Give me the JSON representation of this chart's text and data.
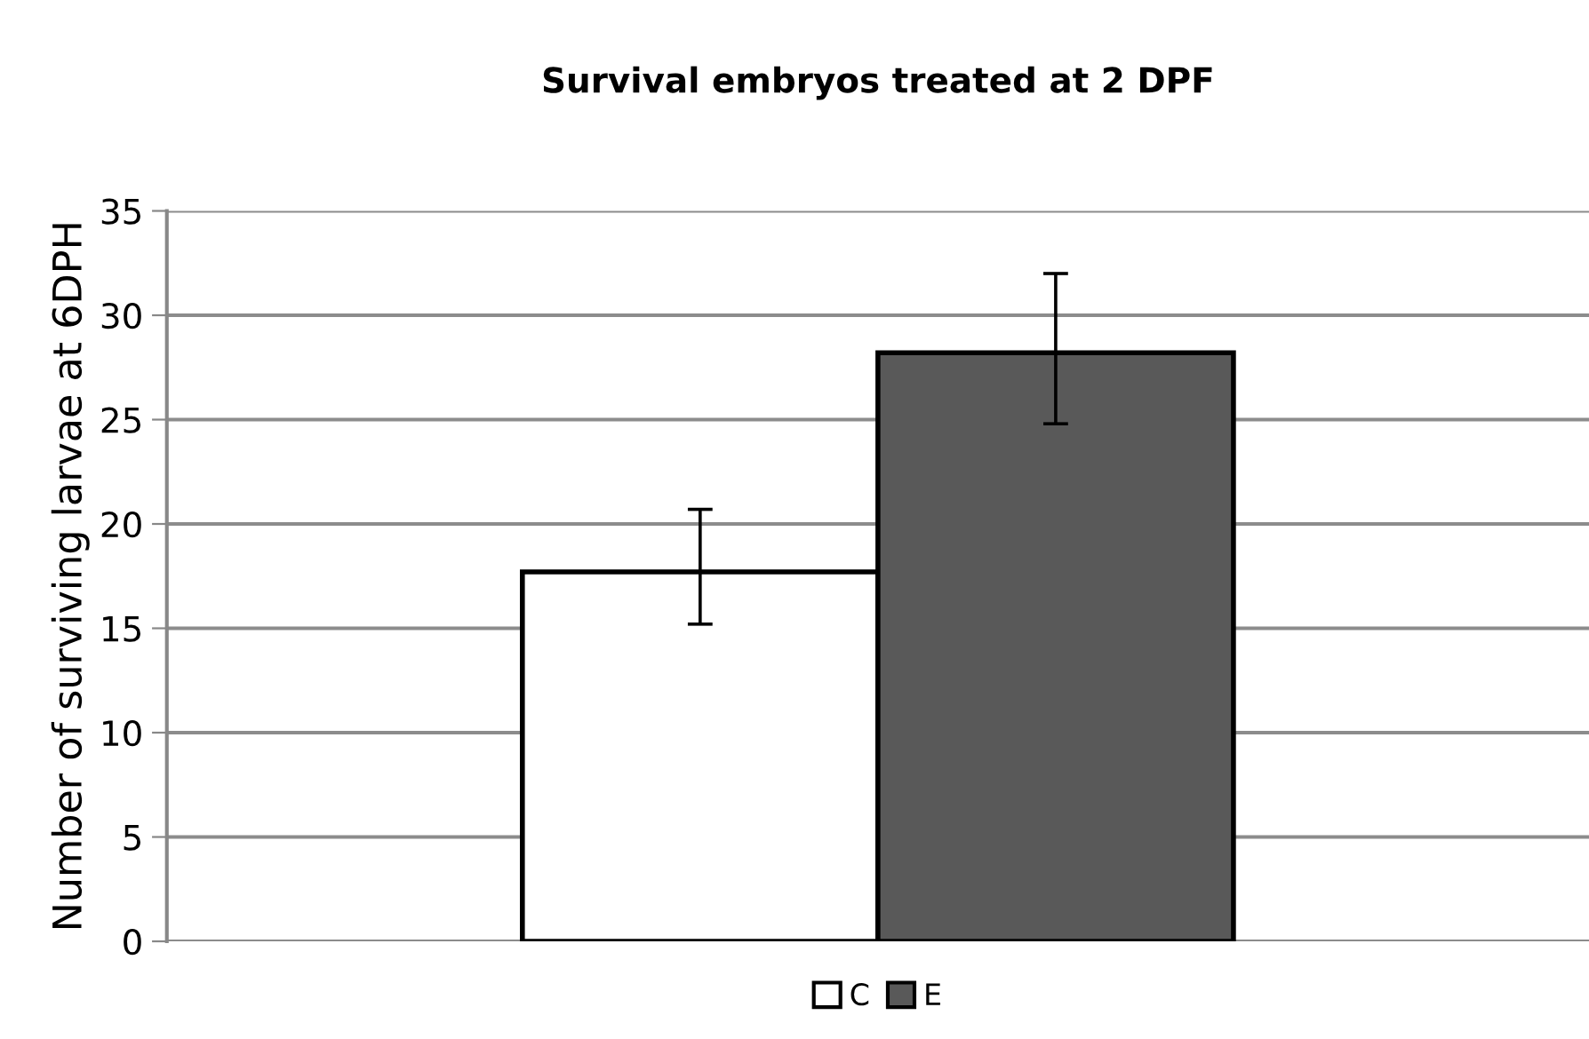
{
  "chart_data": {
    "type": "bar",
    "title": "Survival embryos treated at 2 DPF",
    "ylabel": "Number of surviving larvae at 6DPH",
    "categories": [
      null
    ],
    "series": [
      {
        "name": "C",
        "color": "#ffffff",
        "values": [
          17.7
        ],
        "errors": [
          [
            15.2,
            20.7
          ]
        ]
      },
      {
        "name": "E",
        "color": "#595959",
        "values": [
          28.2
        ],
        "errors": [
          [
            24.8,
            32.0
          ]
        ]
      }
    ],
    "ylim": [
      0,
      35
    ],
    "yticks": [
      0,
      5,
      10,
      15,
      20,
      25,
      30,
      35
    ],
    "grid": "y",
    "legend": "bottom"
  }
}
